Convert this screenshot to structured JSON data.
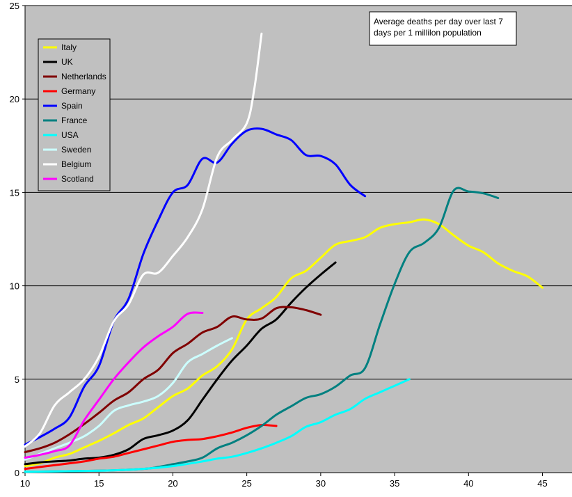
{
  "chart_data": {
    "type": "line",
    "title": "",
    "xlabel": "",
    "ylabel": "",
    "xlim": [
      10,
      47
    ],
    "ylim": [
      0,
      25
    ],
    "x_ticks": [
      10,
      15,
      20,
      25,
      30,
      35,
      40,
      45
    ],
    "y_ticks": [
      0,
      5,
      10,
      15,
      20,
      25
    ],
    "grid": "horizontal",
    "plot_background": "#c0c0c0",
    "legend_position": "top-left",
    "annotation": {
      "lines": [
        "Average deaths per day over last 7",
        "days per 1 millilon population"
      ]
    },
    "series": [
      {
        "name": "Italy",
        "color": "#ffff00",
        "points": [
          [
            10,
            0.35
          ],
          [
            11,
            0.5
          ],
          [
            12,
            0.8
          ],
          [
            13,
            1.0
          ],
          [
            14,
            1.35
          ],
          [
            15,
            1.7
          ],
          [
            16,
            2.1
          ],
          [
            17,
            2.55
          ],
          [
            18,
            2.9
          ],
          [
            19,
            3.5
          ],
          [
            20,
            4.1
          ],
          [
            21,
            4.5
          ],
          [
            22,
            5.2
          ],
          [
            23,
            5.7
          ],
          [
            24,
            6.6
          ],
          [
            25,
            8.2
          ],
          [
            26,
            8.8
          ],
          [
            27,
            9.4
          ],
          [
            28,
            10.4
          ],
          [
            29,
            10.8
          ],
          [
            30,
            11.5
          ],
          [
            31,
            12.2
          ],
          [
            32,
            12.4
          ],
          [
            33,
            12.6
          ],
          [
            34,
            13.1
          ],
          [
            35,
            13.3
          ],
          [
            36,
            13.4
          ],
          [
            37,
            13.55
          ],
          [
            38,
            13.3
          ],
          [
            39,
            12.7
          ],
          [
            40,
            12.15
          ],
          [
            41,
            11.8
          ],
          [
            42,
            11.2
          ],
          [
            43,
            10.8
          ],
          [
            44,
            10.5
          ],
          [
            45,
            9.9
          ]
        ]
      },
      {
        "name": "UK",
        "color": "#000000",
        "points": [
          [
            10,
            0.45
          ],
          [
            11,
            0.55
          ],
          [
            12,
            0.6
          ],
          [
            13,
            0.65
          ],
          [
            14,
            0.75
          ],
          [
            15,
            0.8
          ],
          [
            16,
            0.95
          ],
          [
            17,
            1.25
          ],
          [
            18,
            1.8
          ],
          [
            19,
            2.0
          ],
          [
            20,
            2.25
          ],
          [
            21,
            2.8
          ],
          [
            22,
            3.9
          ],
          [
            23,
            5.0
          ],
          [
            24,
            6.0
          ],
          [
            25,
            6.8
          ],
          [
            26,
            7.7
          ],
          [
            27,
            8.2
          ],
          [
            28,
            9.1
          ],
          [
            29,
            9.9
          ],
          [
            30,
            10.6
          ],
          [
            31,
            11.25
          ]
        ]
      },
      {
        "name": "Netherlands",
        "color": "#800000",
        "points": [
          [
            10,
            1.1
          ],
          [
            11,
            1.3
          ],
          [
            12,
            1.6
          ],
          [
            13,
            2.05
          ],
          [
            14,
            2.6
          ],
          [
            15,
            3.2
          ],
          [
            16,
            3.85
          ],
          [
            17,
            4.3
          ],
          [
            18,
            5.0
          ],
          [
            19,
            5.5
          ],
          [
            20,
            6.4
          ],
          [
            21,
            6.9
          ],
          [
            22,
            7.5
          ],
          [
            23,
            7.8
          ],
          [
            24,
            8.35
          ],
          [
            25,
            8.2
          ],
          [
            26,
            8.25
          ],
          [
            27,
            8.8
          ],
          [
            28,
            8.85
          ],
          [
            29,
            8.7
          ],
          [
            30,
            8.45
          ]
        ]
      },
      {
        "name": "Germany",
        "color": "#ff0000",
        "points": [
          [
            10,
            0.2
          ],
          [
            11,
            0.3
          ],
          [
            12,
            0.4
          ],
          [
            13,
            0.5
          ],
          [
            14,
            0.6
          ],
          [
            15,
            0.75
          ],
          [
            16,
            0.85
          ],
          [
            17,
            1.05
          ],
          [
            18,
            1.25
          ],
          [
            19,
            1.45
          ],
          [
            20,
            1.65
          ],
          [
            21,
            1.75
          ],
          [
            22,
            1.8
          ],
          [
            23,
            1.95
          ],
          [
            24,
            2.15
          ],
          [
            25,
            2.4
          ],
          [
            26,
            2.55
          ],
          [
            27,
            2.5
          ]
        ]
      },
      {
        "name": "Spain",
        "color": "#0000ff",
        "points": [
          [
            10,
            1.5
          ],
          [
            11,
            1.9
          ],
          [
            12,
            2.35
          ],
          [
            13,
            2.95
          ],
          [
            14,
            4.6
          ],
          [
            15,
            5.7
          ],
          [
            16,
            8.1
          ],
          [
            17,
            9.3
          ],
          [
            18,
            11.7
          ],
          [
            19,
            13.5
          ],
          [
            20,
            15.0
          ],
          [
            21,
            15.4
          ],
          [
            22,
            16.8
          ],
          [
            23,
            16.6
          ],
          [
            24,
            17.6
          ],
          [
            25,
            18.3
          ],
          [
            26,
            18.4
          ],
          [
            27,
            18.1
          ],
          [
            28,
            17.8
          ],
          [
            29,
            17.0
          ],
          [
            30,
            16.95
          ],
          [
            31,
            16.5
          ],
          [
            32,
            15.4
          ],
          [
            33,
            14.8
          ]
        ]
      },
      {
        "name": "France",
        "color": "#008080",
        "points": [
          [
            10,
            0.05
          ],
          [
            15,
            0.1
          ],
          [
            18,
            0.2
          ],
          [
            19,
            0.3
          ],
          [
            20,
            0.45
          ],
          [
            21,
            0.6
          ],
          [
            22,
            0.8
          ],
          [
            23,
            1.3
          ],
          [
            24,
            1.6
          ],
          [
            25,
            2.0
          ],
          [
            26,
            2.5
          ],
          [
            27,
            3.1
          ],
          [
            28,
            3.55
          ],
          [
            29,
            4.0
          ],
          [
            30,
            4.2
          ],
          [
            31,
            4.6
          ],
          [
            32,
            5.2
          ],
          [
            33,
            5.6
          ],
          [
            34,
            7.9
          ],
          [
            35,
            10.1
          ],
          [
            36,
            11.8
          ],
          [
            37,
            12.3
          ],
          [
            38,
            13.1
          ],
          [
            39,
            15.1
          ],
          [
            40,
            15.05
          ],
          [
            41,
            14.95
          ],
          [
            42,
            14.7
          ]
        ]
      },
      {
        "name": "USA",
        "color": "#00ffff",
        "points": [
          [
            10,
            0.05
          ],
          [
            15,
            0.1
          ],
          [
            18,
            0.2
          ],
          [
            20,
            0.35
          ],
          [
            22,
            0.6
          ],
          [
            23,
            0.75
          ],
          [
            24,
            0.85
          ],
          [
            25,
            1.05
          ],
          [
            26,
            1.3
          ],
          [
            27,
            1.6
          ],
          [
            28,
            1.95
          ],
          [
            29,
            2.45
          ],
          [
            30,
            2.7
          ],
          [
            31,
            3.1
          ],
          [
            32,
            3.4
          ],
          [
            33,
            3.95
          ],
          [
            34,
            4.3
          ],
          [
            35,
            4.65
          ],
          [
            36,
            5.0
          ]
        ]
      },
      {
        "name": "Sweden",
        "color": "#ccffff",
        "points": [
          [
            10,
            0.7
          ],
          [
            11,
            1.0
          ],
          [
            12,
            1.3
          ],
          [
            13,
            1.6
          ],
          [
            14,
            1.95
          ],
          [
            15,
            2.5
          ],
          [
            16,
            3.3
          ],
          [
            17,
            3.6
          ],
          [
            18,
            3.8
          ],
          [
            19,
            4.1
          ],
          [
            20,
            4.8
          ],
          [
            21,
            5.9
          ],
          [
            22,
            6.35
          ],
          [
            23,
            6.8
          ],
          [
            24,
            7.2
          ]
        ]
      },
      {
        "name": "Belgium",
        "color": "#ffffff",
        "points": [
          [
            10,
            1.4
          ],
          [
            11,
            2.1
          ],
          [
            12,
            3.6
          ],
          [
            13,
            4.3
          ],
          [
            14,
            5.0
          ],
          [
            15,
            6.2
          ],
          [
            16,
            8.1
          ],
          [
            17,
            9.0
          ],
          [
            18,
            10.6
          ],
          [
            19,
            10.7
          ],
          [
            20,
            11.6
          ],
          [
            21,
            12.6
          ],
          [
            22,
            14.1
          ],
          [
            23,
            16.9
          ],
          [
            24,
            17.8
          ],
          [
            25,
            18.7
          ],
          [
            25.5,
            20.5
          ],
          [
            26,
            23.5
          ]
        ]
      },
      {
        "name": "Scotland",
        "color": "#ff00ff",
        "points": [
          [
            10,
            0.8
          ],
          [
            11,
            0.95
          ],
          [
            12,
            1.15
          ],
          [
            13,
            1.45
          ],
          [
            14,
            2.8
          ],
          [
            15,
            3.9
          ],
          [
            16,
            5.0
          ],
          [
            17,
            5.9
          ],
          [
            18,
            6.7
          ],
          [
            19,
            7.3
          ],
          [
            20,
            7.8
          ],
          [
            21,
            8.5
          ],
          [
            22,
            8.55
          ]
        ]
      }
    ]
  }
}
